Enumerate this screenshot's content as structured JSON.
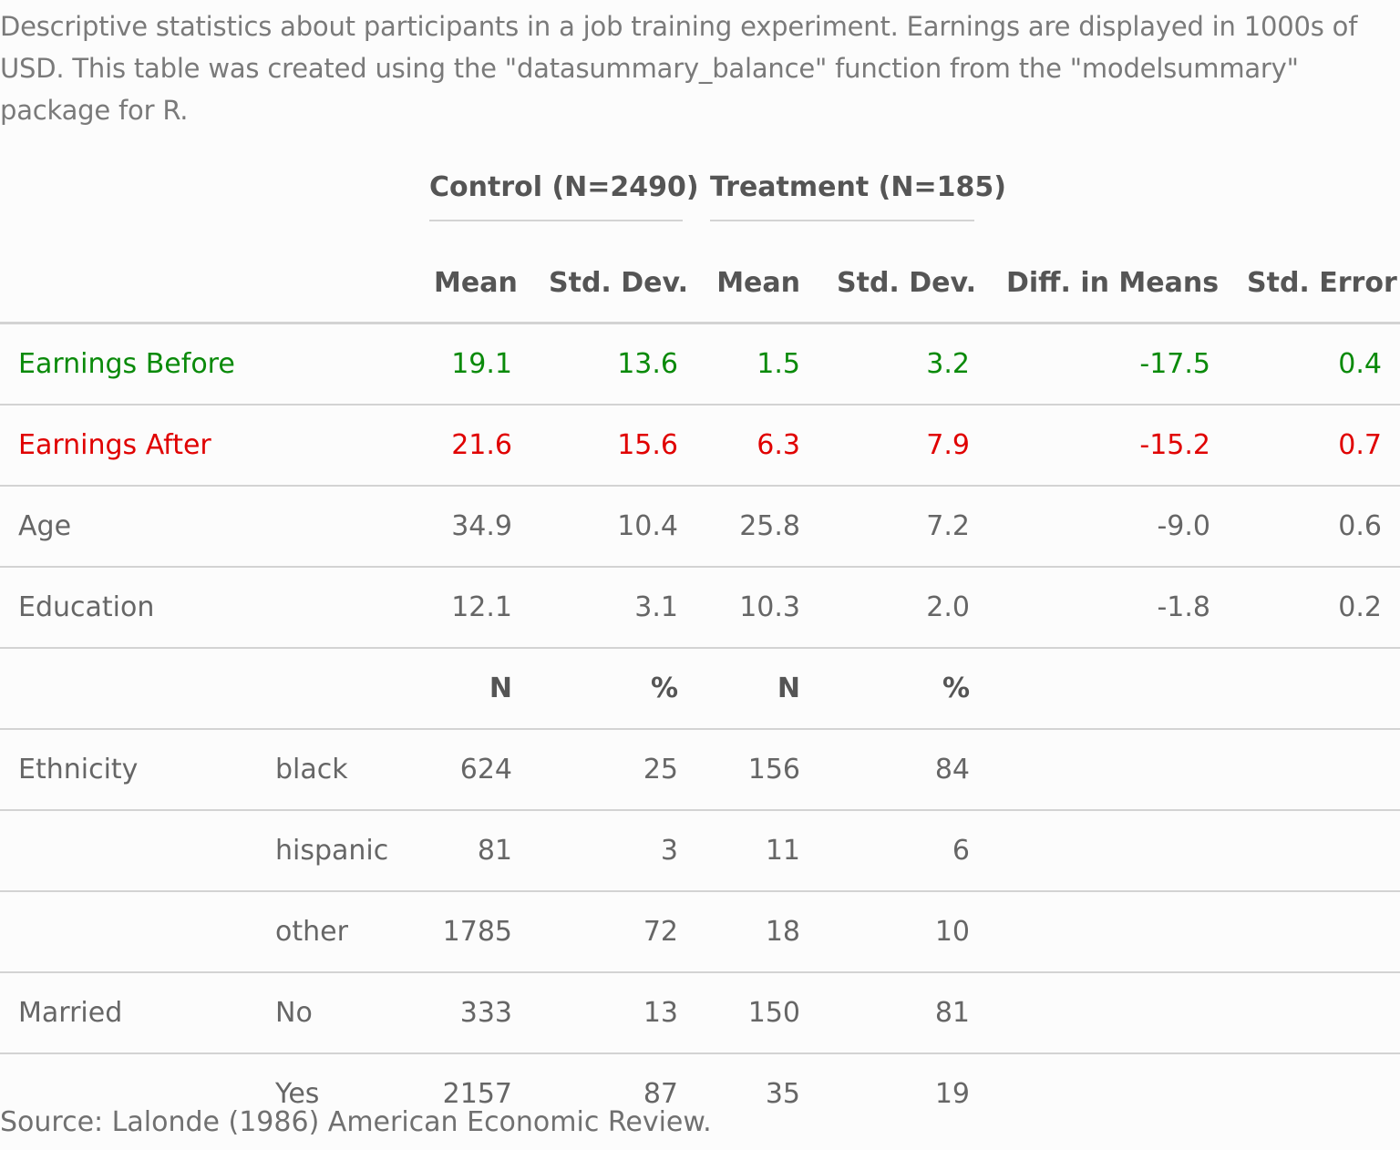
{
  "caption": "Descriptive statistics about participants in a job training experiment. Earnings are displayed in 1000s of USD. This table was created using the \"datasummary_balance\" function from the \"modelsummary\" package for R.",
  "groups": {
    "control": "Control (N=2490)",
    "treatment": "Treatment (N=185)"
  },
  "columns": {
    "control_mean": "Mean",
    "control_sd": "Std. Dev.",
    "treatment_mean": "Mean",
    "treatment_sd": "Std. Dev.",
    "diff": "Diff. in Means",
    "se": "Std. Error"
  },
  "colors": {
    "earnings_before": "#0a8a0a",
    "earnings_after": "#e00000"
  },
  "rows": [
    {
      "label": "Earnings Before",
      "sub": "",
      "c1": "19.1",
      "c2": "13.6",
      "c3": "1.5",
      "c4": "3.2",
      "c5": "-17.5",
      "c6": "0.4"
    },
    {
      "label": "Earnings After",
      "sub": "",
      "c1": "21.6",
      "c2": "15.6",
      "c3": "6.3",
      "c4": "7.9",
      "c5": "-15.2",
      "c6": "0.7"
    },
    {
      "label": "Age",
      "sub": "",
      "c1": "34.9",
      "c2": "10.4",
      "c3": "25.8",
      "c4": "7.2",
      "c5": "-9.0",
      "c6": "0.6"
    },
    {
      "label": "Education",
      "sub": "",
      "c1": "12.1",
      "c2": "3.1",
      "c3": "10.3",
      "c4": "2.0",
      "c5": "-1.8",
      "c6": "0.2"
    },
    {
      "label": "",
      "sub": "",
      "c1": "N",
      "c2": "%",
      "c3": "N",
      "c4": "%",
      "c5": "",
      "c6": ""
    },
    {
      "label": "Ethnicity",
      "sub": "black",
      "c1": "624",
      "c2": "25",
      "c3": "156",
      "c4": "84",
      "c5": "",
      "c6": ""
    },
    {
      "label": "",
      "sub": "hispanic",
      "c1": "81",
      "c2": "3",
      "c3": "11",
      "c4": "6",
      "c5": "",
      "c6": ""
    },
    {
      "label": "",
      "sub": "other",
      "c1": "1785",
      "c2": "72",
      "c3": "18",
      "c4": "10",
      "c5": "",
      "c6": ""
    },
    {
      "label": "Married",
      "sub": "No",
      "c1": "333",
      "c2": "13",
      "c3": "150",
      "c4": "81",
      "c5": "",
      "c6": ""
    },
    {
      "label": "",
      "sub": "Yes",
      "c1": "2157",
      "c2": "87",
      "c3": "35",
      "c4": "19",
      "c5": "",
      "c6": ""
    }
  ],
  "source": "Source: Lalonde (1986) American Economic Review."
}
